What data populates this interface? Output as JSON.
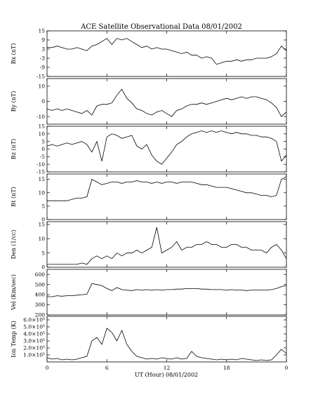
{
  "chart_data": {
    "type": "line",
    "title": "ACE Satellite Observational Data   08/01/2002",
    "xlabel": "UT (Hour)   08/01/2002",
    "x_ticks": [
      "0",
      "6",
      "12",
      "18",
      "0"
    ],
    "xlim": [
      0,
      24
    ],
    "panels": [
      {
        "name": "Bx",
        "ylabel": "Bx (nT)",
        "ylim": [
          -15,
          15
        ],
        "yticks": [
          15,
          9,
          3,
          -3,
          -9,
          -15
        ],
        "ytick_labels": [
          "15",
          "9",
          "3",
          "-3",
          "-9",
          "-15"
        ],
        "series": {
          "x": [
            0,
            0.5,
            1,
            1.5,
            2,
            2.5,
            3,
            3.5,
            4,
            4.5,
            5,
            5.5,
            6,
            6.5,
            7,
            7.5,
            8,
            8.5,
            9,
            9.5,
            10,
            10.5,
            11,
            11.5,
            12,
            12.5,
            13,
            13.5,
            14,
            14.5,
            15,
            15.5,
            16,
            16.5,
            17,
            17.5,
            18,
            18.5,
            19,
            19.5,
            20,
            20.5,
            21,
            21.5,
            22,
            22.5,
            23,
            23.5,
            24
          ],
          "y": [
            4,
            4,
            5,
            4,
            3,
            3,
            4,
            3,
            2,
            5,
            6,
            8,
            10,
            6,
            10,
            9,
            10,
            8,
            6,
            4,
            5,
            3,
            4,
            3,
            3,
            2,
            1,
            0,
            1,
            -1,
            -1,
            -3,
            -2,
            -3,
            -7,
            -6,
            -5,
            -5,
            -4,
            -5,
            -4,
            -4,
            -3,
            -3,
            -3,
            -2,
            0,
            5,
            2
          ]
        }
      },
      {
        "name": "By",
        "ylabel": "By (nT)",
        "ylim": [
          -15,
          15
        ],
        "yticks": [
          10,
          0,
          -10
        ],
        "ytick_labels": [
          "10",
          "0",
          "-10"
        ],
        "series": {
          "x": [
            0,
            0.5,
            1,
            1.5,
            2,
            2.5,
            3,
            3.5,
            4,
            4.5,
            5,
            5.5,
            6,
            6.5,
            7,
            7.5,
            8,
            8.5,
            9,
            9.5,
            10,
            10.5,
            11,
            11.5,
            12,
            12.5,
            13,
            13.5,
            14,
            14.5,
            15,
            15.5,
            16,
            16.5,
            17,
            17.5,
            18,
            18.5,
            19,
            19.5,
            20,
            20.5,
            21,
            21.5,
            22,
            22.5,
            23,
            23.5,
            24
          ],
          "y": [
            -5,
            -6,
            -5,
            -6,
            -5,
            -6,
            -7,
            -8,
            -6,
            -9,
            -3,
            -2,
            -2,
            -1,
            4,
            8,
            2,
            -1,
            -5,
            -6,
            -8,
            -9,
            -7,
            -6,
            -8,
            -10,
            -6,
            -5,
            -3,
            -2,
            -2,
            -1,
            -2,
            -1,
            0,
            1,
            2,
            1,
            2,
            3,
            2,
            3,
            3,
            2,
            1,
            -1,
            -4,
            -10,
            -7
          ]
        }
      },
      {
        "name": "Bz",
        "ylabel": "Bz (nT)",
        "ylim": [
          -15,
          15
        ],
        "yticks": [
          15,
          10,
          5,
          0,
          -5,
          -10,
          -15
        ],
        "ytick_labels": [
          "15",
          "10",
          "5",
          "0",
          "-5",
          "-10",
          "-15"
        ],
        "series": {
          "x": [
            0,
            0.5,
            1,
            1.5,
            2,
            2.5,
            3,
            3.5,
            4,
            4.5,
            5,
            5.5,
            6,
            6.5,
            7,
            7.5,
            8,
            8.5,
            9,
            9.5,
            10,
            10.5,
            11,
            11.5,
            12,
            12.5,
            13,
            13.5,
            14,
            14.5,
            15,
            15.5,
            16,
            16.5,
            17,
            17.5,
            18,
            18.5,
            19,
            19.5,
            20,
            20.5,
            21,
            21.5,
            22,
            22.5,
            23,
            23.5,
            24
          ],
          "y": [
            2,
            3,
            2,
            3,
            4,
            3,
            4,
            5,
            3,
            -2,
            5,
            -8,
            8,
            10,
            9,
            7,
            8,
            9,
            2,
            0,
            3,
            -4,
            -8,
            -10,
            -6,
            -2,
            3,
            5,
            8,
            10,
            11,
            12,
            11,
            12,
            11,
            12,
            11,
            10,
            11,
            10,
            10,
            9,
            9,
            8,
            8,
            7,
            5,
            -8,
            -4
          ]
        }
      },
      {
        "name": "Bt",
        "ylabel": "Bt (nT)",
        "ylim": [
          0,
          17
        ],
        "yticks": [
          15,
          10,
          5,
          0
        ],
        "ytick_labels": [
          "15",
          "10",
          "5",
          "0"
        ],
        "series": {
          "x": [
            0,
            0.5,
            1,
            1.5,
            2,
            2.5,
            3,
            3.5,
            4,
            4.5,
            5,
            5.5,
            6,
            6.5,
            7,
            7.5,
            8,
            8.5,
            9,
            9.5,
            10,
            10.5,
            11,
            11.5,
            12,
            12.5,
            13,
            13.5,
            14,
            14.5,
            15,
            15.5,
            16,
            16.5,
            17,
            17.5,
            18,
            18.5,
            19,
            19.5,
            20,
            20.5,
            21,
            21.5,
            22,
            22.5,
            23,
            23.5,
            24
          ],
          "y": [
            7,
            7,
            7,
            7,
            7,
            7.5,
            8,
            8,
            8.5,
            15,
            14,
            13,
            13.5,
            14,
            14,
            13.5,
            14,
            14,
            14.5,
            14,
            14,
            13.5,
            14,
            13.5,
            14,
            14,
            13.5,
            14,
            14,
            14,
            13.5,
            13,
            13,
            12.5,
            12,
            12,
            12,
            11.5,
            11,
            10.5,
            10,
            10,
            9.5,
            9,
            9,
            8.5,
            9,
            15,
            16
          ]
        }
      },
      {
        "name": "Den",
        "ylabel": "Den (1/cc)",
        "ylim": [
          0,
          16
        ],
        "yticks": [
          15,
          10,
          5,
          0
        ],
        "ytick_labels": [
          "15",
          "10",
          "5",
          "0"
        ],
        "series": {
          "x": [
            0,
            0.5,
            1,
            1.5,
            2,
            2.5,
            3,
            3.5,
            4,
            4.5,
            5,
            5.5,
            6,
            6.5,
            7,
            7.5,
            8,
            8.5,
            9,
            9.5,
            10,
            10.5,
            11,
            11.5,
            12,
            12.5,
            13,
            13.5,
            14,
            14.5,
            15,
            15.5,
            16,
            16.5,
            17,
            17.5,
            18,
            18.5,
            19,
            19.5,
            20,
            20.5,
            21,
            21.5,
            22,
            22.5,
            23,
            23.5,
            24
          ],
          "y": [
            1,
            1,
            1,
            1,
            1,
            1,
            1,
            1.5,
            1,
            3,
            4,
            3,
            4,
            3,
            5,
            4,
            5,
            5,
            6,
            5,
            6,
            7,
            14,
            5,
            6,
            7,
            9,
            6,
            7,
            7,
            8,
            8,
            9,
            8,
            8,
            7,
            7,
            8,
            8,
            7,
            7,
            6,
            6,
            6,
            5,
            7,
            8,
            6,
            3
          ]
        }
      },
      {
        "name": "Vel",
        "ylabel": "Vel (Km/sec)",
        "ylim": [
          200,
          650
        ],
        "yticks": [
          600,
          500,
          400,
          300,
          200
        ],
        "ytick_labels": [
          "600",
          "500",
          "400",
          "300",
          "200"
        ],
        "series": {
          "x": [
            0,
            0.5,
            1,
            1.5,
            2,
            2.5,
            3,
            3.5,
            4,
            4.5,
            5,
            5.5,
            6,
            6.5,
            7,
            7.5,
            8,
            8.5,
            9,
            9.5,
            10,
            10.5,
            11,
            11.5,
            12,
            12.5,
            13,
            13.5,
            14,
            14.5,
            15,
            15.5,
            16,
            16.5,
            17,
            17.5,
            18,
            18.5,
            19,
            19.5,
            20,
            20.5,
            21,
            21.5,
            22,
            22.5,
            23,
            23.5,
            24
          ],
          "y": [
            380,
            380,
            390,
            385,
            390,
            390,
            395,
            400,
            405,
            510,
            500,
            490,
            460,
            440,
            470,
            450,
            445,
            440,
            450,
            445,
            450,
            445,
            450,
            445,
            450,
            450,
            455,
            455,
            460,
            460,
            460,
            455,
            455,
            450,
            450,
            450,
            445,
            450,
            445,
            445,
            440,
            445,
            445,
            445,
            445,
            450,
            460,
            480,
            490
          ]
        }
      },
      {
        "name": "IonTemp",
        "ylabel": "Ion Temp (K)",
        "ylim": [
          0,
          650000
        ],
        "yticks": [
          100000,
          200000,
          300000,
          400000,
          500000,
          600000
        ],
        "ytick_labels": [
          "1.0×10⁵",
          "2.0×10⁵",
          "3.0×10⁵",
          "4.0×10⁵",
          "5.0×10⁵",
          "6.0×10⁵"
        ],
        "series": {
          "x": [
            0,
            0.5,
            1,
            1.5,
            2,
            2.5,
            3,
            3.5,
            4,
            4.5,
            5,
            5.5,
            6,
            6.5,
            7,
            7.5,
            8,
            8.5,
            9,
            9.5,
            10,
            10.5,
            11,
            11.5,
            12,
            12.5,
            13,
            13.5,
            14,
            14.5,
            15,
            15.5,
            16,
            16.5,
            17,
            17.5,
            18,
            18.5,
            19,
            19.5,
            20,
            20.5,
            21,
            21.5,
            22,
            22.5,
            23,
            23.5,
            24
          ],
          "y": [
            60000,
            40000,
            50000,
            30000,
            40000,
            30000,
            40000,
            60000,
            80000,
            300000,
            350000,
            250000,
            480000,
            420000,
            300000,
            450000,
            250000,
            150000,
            80000,
            60000,
            40000,
            50000,
            40000,
            60000,
            50000,
            40000,
            60000,
            40000,
            50000,
            150000,
            80000,
            60000,
            50000,
            40000,
            30000,
            40000,
            30000,
            40000,
            30000,
            50000,
            40000,
            30000,
            20000,
            30000,
            20000,
            30000,
            100000,
            180000,
            120000
          ]
        }
      }
    ]
  }
}
